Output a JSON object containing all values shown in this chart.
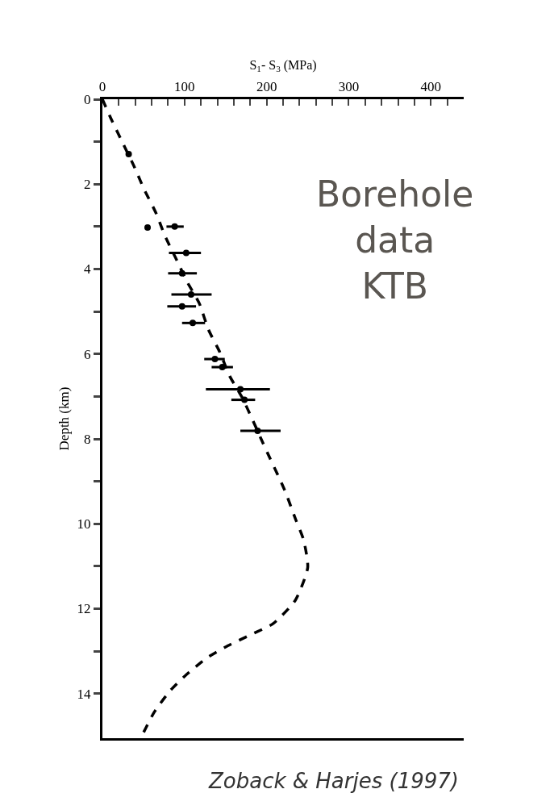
{
  "chart_data": {
    "type": "scatter",
    "xlabel": "S$_{1}$- S$_{3}$ (MPa)",
    "ylabel": "Depth (km)",
    "xlim": [
      0,
      440
    ],
    "ylim": [
      15.05,
      0
    ],
    "xticks": [
      0,
      {
        "value": 20,
        "label": null
      },
      {
        "value": 40,
        "label": null
      },
      {
        "value": 60,
        "label": null
      },
      {
        "value": 80,
        "label": null
      },
      100,
      {
        "value": 120,
        "label": null
      },
      {
        "value": 140,
        "label": null
      },
      {
        "value": 160,
        "label": null
      },
      {
        "value": 180,
        "label": null
      },
      200,
      {
        "value": 220,
        "label": null
      },
      {
        "value": 240,
        "label": null
      },
      {
        "value": 260,
        "label": null
      },
      {
        "value": 280,
        "label": null
      },
      300,
      {
        "value": 320,
        "label": null
      },
      {
        "value": 340,
        "label": null
      },
      {
        "value": 360,
        "label": null
      },
      {
        "value": 380,
        "label": null
      },
      400,
      {
        "value": 420,
        "label": null
      }
    ],
    "yticks": [
      0,
      {
        "value": 1,
        "label": null
      },
      2,
      {
        "value": 3,
        "label": null
      },
      4,
      {
        "value": 5,
        "label": null
      },
      6,
      {
        "value": 7,
        "label": null
      },
      8,
      {
        "value": 9,
        "label": null
      },
      10,
      {
        "value": 11,
        "label": null
      },
      12,
      {
        "value": 13,
        "label": null
      },
      14
    ],
    "series": [
      {
        "color": "#000000",
        "marker": "circle",
        "x": [
          32,
          55,
          88,
          102,
          97,
          108,
          97,
          110,
          137,
          146,
          168,
          173,
          189
        ],
        "values": [
          1.29,
          3.02,
          3.0,
          3.62,
          4.1,
          4.6,
          4.88,
          5.27,
          6.12,
          6.31,
          6.83,
          7.08,
          7.81
        ],
        "xerrors": [
          null,
          null,
          [
            78,
            99
          ],
          [
            81,
            120
          ],
          [
            80,
            115
          ],
          [
            84,
            133
          ],
          [
            79,
            114
          ],
          [
            97,
            125
          ],
          [
            124,
            149
          ],
          [
            133,
            159
          ],
          [
            126,
            204
          ],
          [
            157,
            186
          ],
          [
            168,
            217
          ]
        ]
      },
      {
        "type": "line",
        "color": "#000000",
        "line_style": "dashed",
        "marker": "none",
        "x": [
          0,
          11,
          25,
          39,
          51,
          65,
          76,
          89,
          104,
          118,
          129,
          143,
          155,
          170,
          184,
          196,
          202,
          222,
          235,
          245,
          250,
          235,
          208,
          182,
          153,
          128,
          103,
          83,
          63,
          50
        ],
        "values": [
          0,
          0.48,
          1.04,
          1.6,
          2.13,
          2.67,
          3.21,
          3.73,
          4.33,
          4.81,
          5.42,
          5.96,
          6.52,
          7.02,
          7.6,
          8.12,
          8.37,
          9.21,
          9.88,
          10.38,
          11.03,
          11.8,
          12.35,
          12.6,
          12.87,
          13.15,
          13.54,
          13.92,
          14.44,
          14.92
        ]
      }
    ],
    "annotations": [
      "Borehole\ndata\nKTB",
      "Zoback & Harjes (1997)"
    ]
  }
}
